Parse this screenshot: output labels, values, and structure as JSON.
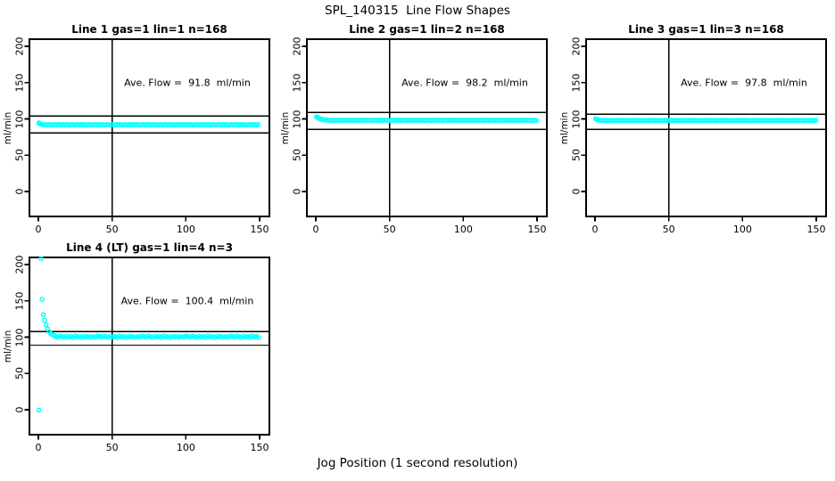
{
  "title": "SPL_140315  Line Flow Shapes",
  "xlabel": "Jog Position (1 second resolution)",
  "colors": {
    "point": "#00FFFF",
    "line": "#000000",
    "background": "#FFFFFF",
    "text": "#000000"
  },
  "chart_data": [
    {
      "type": "scatter",
      "title": "Line 1 gas=1 lin=1 n=168",
      "line": 1,
      "gas": 1,
      "lin": 1,
      "n": 168,
      "ave_flow": 91.8,
      "annotation": "Ave. Flow =  91.8  ml/min",
      "ylabel": "ml/min",
      "x_ticks": [
        0,
        50,
        100,
        150
      ],
      "y_ticks": [
        0,
        50,
        100,
        150,
        200
      ],
      "x_range": [
        -6,
        157
      ],
      "y_range": [
        -34,
        210
      ],
      "vline_x": 50,
      "hlines": [
        104,
        80.5
      ],
      "transient": [
        [
          0.4,
          94.5
        ],
        [
          1,
          93.5
        ],
        [
          1.8,
          92.8
        ]
      ],
      "band": {
        "x_start": 2.6,
        "x_end": 150,
        "step": 1.2,
        "y": 92,
        "wobble": [
          0.3,
          -0.2,
          0.3,
          -0.1,
          0.2,
          -0.3,
          0,
          0.3,
          -0.2,
          0.1
        ]
      }
    },
    {
      "type": "scatter",
      "title": "Line 2 gas=1 lin=2 n=168",
      "line": 2,
      "gas": 1,
      "lin": 2,
      "n": 168,
      "ave_flow": 98.2,
      "annotation": "Ave. Flow =  98.2  ml/min",
      "ylabel": "ml/min",
      "x_ticks": [
        0,
        50,
        100,
        150
      ],
      "y_ticks": [
        0,
        50,
        100,
        150,
        200
      ],
      "x_range": [
        -6,
        157
      ],
      "y_range": [
        -34,
        210
      ],
      "vline_x": 50,
      "hlines": [
        109,
        85.8
      ],
      "transient": [
        [
          0.5,
          102.8
        ],
        [
          1.2,
          102
        ],
        [
          2,
          101
        ],
        [
          2.8,
          100.2
        ],
        [
          3.6,
          99.5
        ],
        [
          4.6,
          99
        ],
        [
          5.8,
          98.6
        ],
        [
          7,
          98.3
        ]
      ],
      "band": {
        "x_start": 8,
        "x_end": 150,
        "step": 1.2,
        "y": 98.1,
        "wobble": [
          0.3,
          -0.2,
          0.3,
          -0.1,
          0.2,
          -0.3,
          0,
          0.3,
          -0.2,
          0.1
        ]
      }
    },
    {
      "type": "scatter",
      "title": "Line 3 gas=1 lin=3 n=168",
      "line": 3,
      "gas": 1,
      "lin": 3,
      "n": 168,
      "ave_flow": 97.8,
      "annotation": "Ave. Flow =  97.8  ml/min",
      "ylabel": "ml/min",
      "x_ticks": [
        0,
        50,
        100,
        150
      ],
      "y_ticks": [
        0,
        50,
        100,
        150,
        200
      ],
      "x_range": [
        -6,
        157
      ],
      "y_range": [
        -34,
        210
      ],
      "vline_x": 50,
      "hlines": [
        106.5,
        85.8
      ],
      "transient": [
        [
          0.4,
          100.2
        ],
        [
          1,
          99.5
        ],
        [
          1.8,
          98.9
        ],
        [
          2.6,
          98.4
        ]
      ],
      "band": {
        "x_start": 3.4,
        "x_end": 150,
        "step": 1.2,
        "y": 97.8,
        "wobble": [
          0.3,
          -0.2,
          0.3,
          -0.1,
          0.2,
          -0.3,
          0,
          0.3,
          -0.2,
          0.1
        ]
      }
    },
    {
      "type": "scatter",
      "title": "Line 4 (LT) gas=1 lin=4 n=3",
      "line": 4,
      "gas": 1,
      "lin": 4,
      "n": 3,
      "ave_flow": 100.4,
      "annotation": "Ave. Flow =  100.4  ml/min",
      "ylabel": "ml/min",
      "x_ticks": [
        0,
        50,
        100,
        150
      ],
      "y_ticks": [
        0,
        50,
        100,
        150,
        200
      ],
      "x_range": [
        -6,
        157
      ],
      "y_range": [
        -34,
        210
      ],
      "vline_x": 50,
      "hlines": [
        107.5,
        89
      ],
      "transient": [
        [
          0.3,
          -0.5
        ],
        [
          1.9,
          208
        ],
        [
          2.5,
          152
        ],
        [
          3.3,
          131
        ],
        [
          4.2,
          123.5
        ],
        [
          5.2,
          117
        ],
        [
          6.2,
          111.5
        ],
        [
          7.3,
          107.5
        ],
        [
          8.3,
          105
        ],
        [
          9.3,
          103.5
        ],
        [
          10.4,
          102.8
        ]
      ],
      "band": {
        "x_start": 11.5,
        "x_end": 150,
        "step": 1.5,
        "y": 100.4,
        "wobble": [
          0.7,
          -0.5,
          1.1,
          0.1,
          -0.8,
          0.9,
          -0.2,
          0.4,
          -0.9,
          1.2,
          -0.1,
          0.5,
          -1,
          0.8,
          0,
          0.6,
          -0.6,
          0.3,
          -0.4,
          1
        ]
      }
    }
  ]
}
